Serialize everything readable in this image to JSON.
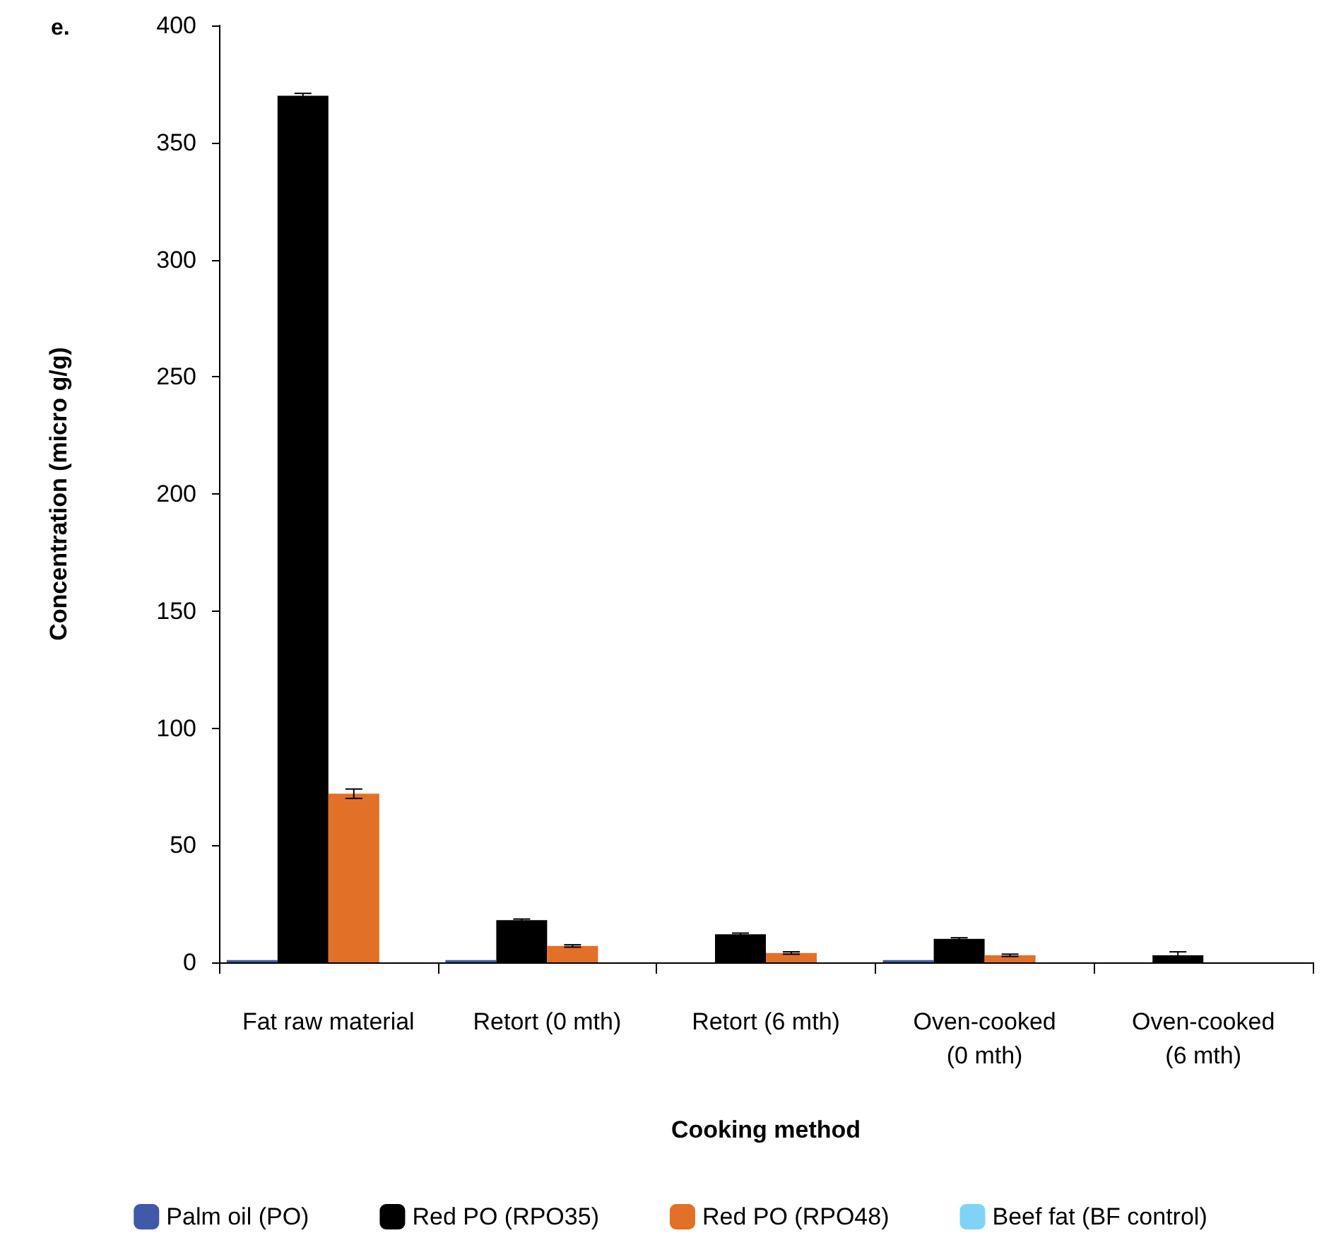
{
  "chart_data": {
    "type": "bar",
    "xlabel": "Cooking method",
    "ylabel": "Concentration (micro g/g)",
    "annotations": [
      "e."
    ],
    "categories": [
      "Fat raw material",
      "Retort (0 mth)",
      "Retort (6 mth)",
      "Oven-cooked\n(0 mth)",
      "Oven-cooked\n(6 mth)"
    ],
    "series": [
      {
        "name": "Palm oil (PO)",
        "color": "#3f5aa8",
        "values": [
          1,
          1,
          0,
          1,
          0
        ]
      },
      {
        "name": "Red PO (RPO35)",
        "color": "#000000",
        "values": [
          370,
          18,
          12,
          10,
          3
        ],
        "errors": [
          1,
          0.5,
          0.5,
          0.5,
          1.5
        ]
      },
      {
        "name": "Red PO (RPO48)",
        "color": "#e37027",
        "values": [
          72,
          7,
          4,
          3,
          0
        ],
        "errors": [
          2,
          0.5,
          0.5,
          0.5,
          null
        ]
      },
      {
        "name": "Beef fat (BF control)",
        "color": "#7fd4f5",
        "values": [
          0,
          0,
          0,
          0,
          0
        ]
      }
    ],
    "ylim": [
      0,
      400
    ],
    "yticks": [
      0,
      50,
      100,
      150,
      200,
      250,
      300,
      350,
      400
    ],
    "grid": false,
    "legend": "bottom"
  }
}
